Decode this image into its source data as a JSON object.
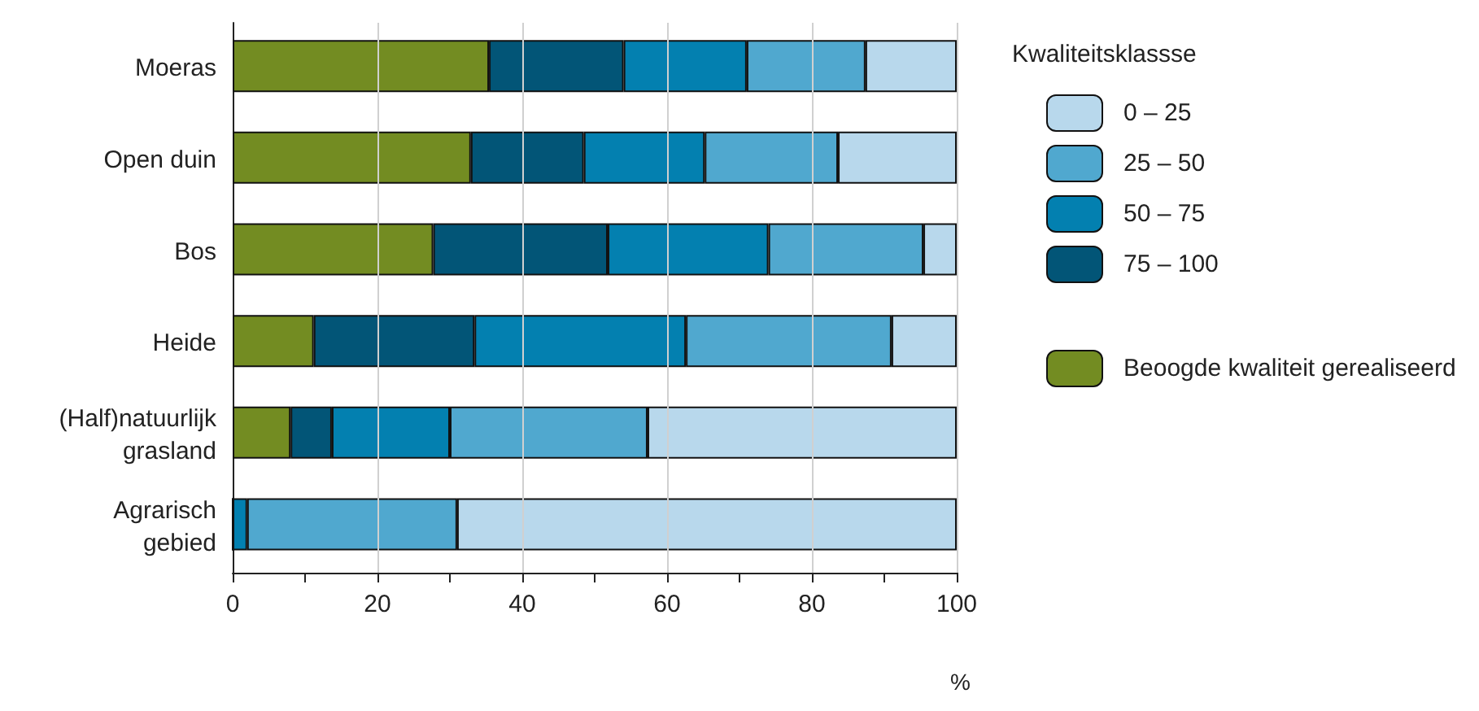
{
  "chart_data": {
    "type": "bar",
    "orientation": "horizontal",
    "stacked": true,
    "categories": [
      "Moeras",
      "Open duin",
      "Bos",
      "Heide",
      "(Half)natuurlijk\ngrasland",
      "Agrarisch\ngebied"
    ],
    "series": [
      {
        "name": "Beoogde kwaliteit gerealiseerd",
        "color": "#738c22",
        "values": [
          35.4,
          32.9,
          27.7,
          11.2,
          8.0,
          0
        ]
      },
      {
        "name": "75 – 100",
        "color": "#025577",
        "values": [
          18.6,
          15.6,
          24.1,
          22.2,
          5.7,
          0
        ]
      },
      {
        "name": "50 – 75",
        "color": "#0380b0",
        "values": [
          17.0,
          16.7,
          22.2,
          29.2,
          16.3,
          2.0
        ]
      },
      {
        "name": "25 – 50",
        "color": "#50a8cf",
        "values": [
          16.4,
          18.4,
          21.4,
          28.4,
          27.3,
          29.0
        ]
      },
      {
        "name": "0 – 25",
        "color": "#b8d8ec",
        "values": [
          12.6,
          16.4,
          4.6,
          9.0,
          42.7,
          69.0
        ]
      }
    ],
    "xlim": [
      0,
      100
    ],
    "xticks": [
      0,
      {
        "value": 10,
        "label": null
      },
      20,
      {
        "value": 30,
        "label": null
      },
      40,
      {
        "value": 50,
        "label": null
      },
      60,
      {
        "value": 70,
        "label": null
      },
      80,
      {
        "value": 90,
        "label": null
      },
      100
    ],
    "xlabel": "%",
    "legend_title": "Kwaliteitsklassse",
    "legend": "right",
    "grid": "x"
  }
}
